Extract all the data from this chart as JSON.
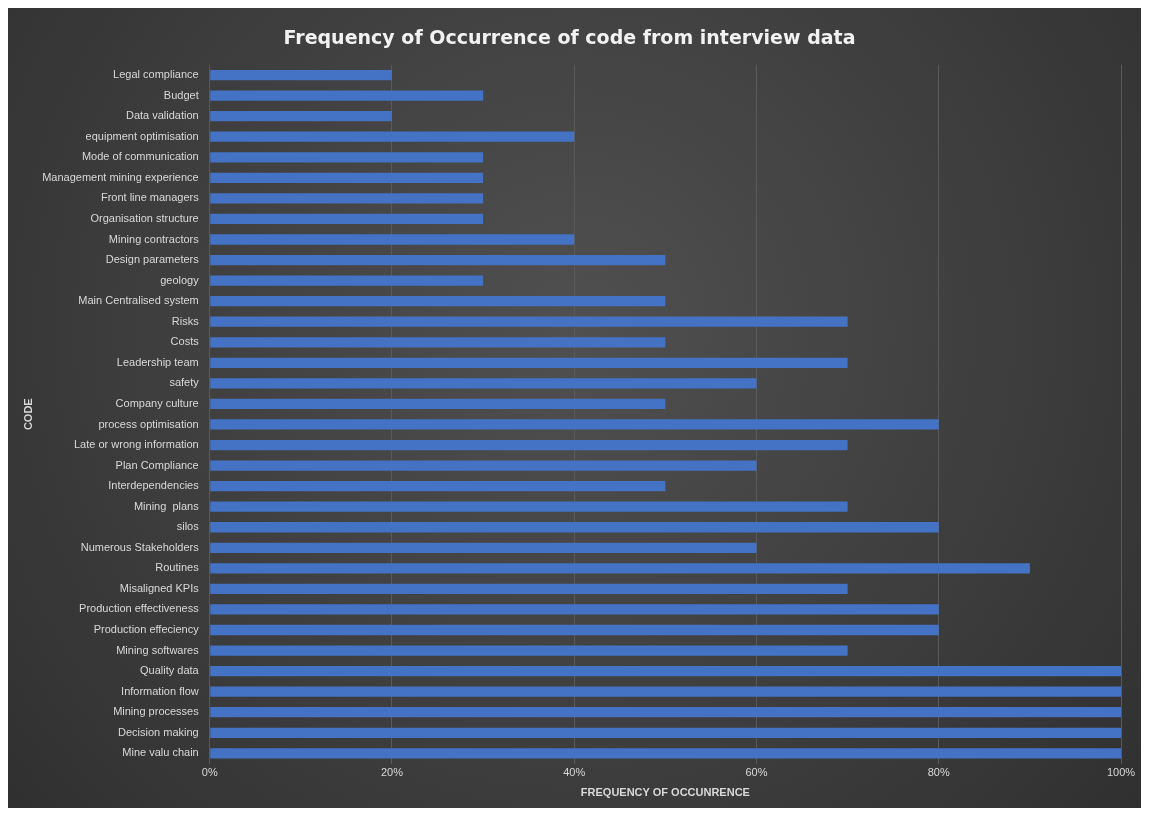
{
  "chart_data": {
    "type": "bar",
    "orientation": "horizontal",
    "title": "Frequency of Occurrence of code from interview data",
    "xlabel": "FREQUENCY OF OCCUNRENCE",
    "ylabel": "CODE",
    "categories": [
      "Legal compliance",
      "Budget",
      "Data validation",
      "equipment optimisation",
      "Mode of communication",
      "Management mining experience",
      "Front line managers",
      "Organisation structure",
      "Mining contractors",
      "Design parameters",
      "geology",
      "Main Centralised system",
      "Risks",
      "Costs",
      "Leadership team",
      "safety",
      "Company culture",
      "process optimisation",
      "Late or wrong information",
      "Plan Compliance",
      "Interdependencies",
      "Mining  plans",
      "silos",
      "Numerous Stakeholders",
      "Routines",
      "Misaligned KPIs",
      "Production effectiveness",
      "Production effeciency",
      "Mining softwares",
      "Quality data",
      "Information flow",
      "Mining processes",
      "Decision making",
      "Mine valu chain"
    ],
    "values": [
      20,
      30,
      20,
      40,
      30,
      30,
      30,
      30,
      40,
      50,
      30,
      50,
      70,
      50,
      70,
      60,
      50,
      80,
      70,
      60,
      50,
      70,
      80,
      60,
      90,
      70,
      80,
      80,
      70,
      100,
      100,
      100,
      100,
      100
    ],
    "color": "#4472c4",
    "xlim": [
      0,
      100
    ],
    "xticks": [
      {
        "value": 0,
        "label": "0%"
      },
      {
        "value": 20,
        "label": "20%"
      },
      {
        "value": 40,
        "label": "40%"
      },
      {
        "value": 60,
        "label": "60%"
      },
      {
        "value": 80,
        "label": "80%"
      },
      {
        "value": 100,
        "label": "100%"
      }
    ],
    "grid": "x",
    "legend": false
  }
}
